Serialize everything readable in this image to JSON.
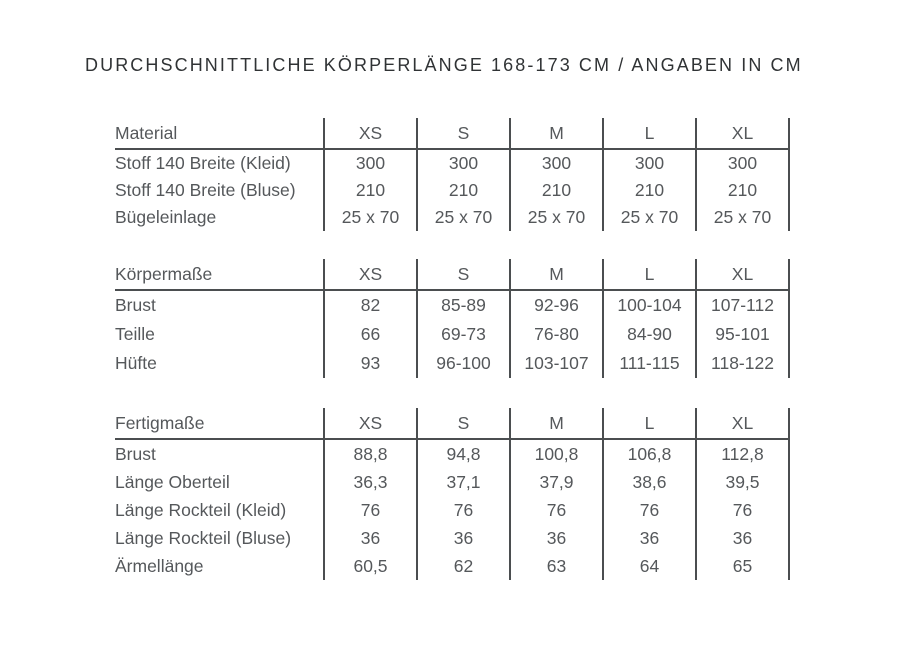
{
  "title": "DURCHSCHNITTLICHE KÖRPERLÄNGE 168-173 CM / ANGABEN IN CM",
  "colors": {
    "background": "#ffffff",
    "title_text": "#303335",
    "body_text": "#55585b",
    "line": "#4b4e50"
  },
  "sizes": [
    "XS",
    "S",
    "M",
    "L",
    "XL"
  ],
  "tables": [
    {
      "name": "Material",
      "header": {
        "label": "Material",
        "cols": [
          "XS",
          "S",
          "M",
          "L",
          "XL"
        ]
      },
      "rows": [
        {
          "label": "Stoff 140 Breite (Kleid)",
          "values": [
            "300",
            "300",
            "300",
            "300",
            "300"
          ]
        },
        {
          "label": "Stoff 140 Breite (Bluse)",
          "values": [
            "210",
            "210",
            "210",
            "210",
            "210"
          ]
        },
        {
          "label": "Bügeleinlage",
          "values": [
            "25 x 70",
            "25 x 70",
            "25 x 70",
            "25 x 70",
            "25 x 70"
          ]
        }
      ]
    },
    {
      "name": "Körpermaße",
      "header": {
        "label": "Körpermaße",
        "cols": [
          "XS",
          "S",
          "M",
          "L",
          "XL"
        ]
      },
      "rows": [
        {
          "label": "Brust",
          "values": [
            "82",
            "85-89",
            "92-96",
            "100-104",
            "107-112"
          ]
        },
        {
          "label": "Teille",
          "values": [
            "66",
            "69-73",
            "76-80",
            "84-90",
            "95-101"
          ]
        },
        {
          "label": "Hüfte",
          "values": [
            "93",
            "96-100",
            "103-107",
            "111-115",
            "118-122"
          ]
        }
      ]
    },
    {
      "name": "Fertigmaße",
      "header": {
        "label": "Fertigmaße",
        "cols": [
          "XS",
          "S",
          "M",
          "L",
          "XL"
        ]
      },
      "rows": [
        {
          "label": "Brust",
          "values": [
            "88,8",
            "94,8",
            "100,8",
            "106,8",
            "112,8"
          ]
        },
        {
          "label": "Länge Oberteil",
          "values": [
            "36,3",
            "37,1",
            "37,9",
            "38,6",
            "39,5"
          ]
        },
        {
          "label": "Länge Rockteil (Kleid)",
          "values": [
            "76",
            "76",
            "76",
            "76",
            "76"
          ]
        },
        {
          "label": "Länge Rockteil (Bluse)",
          "values": [
            "36",
            "36",
            "36",
            "36",
            "36"
          ]
        },
        {
          "label": "Ärmellänge",
          "values": [
            "60,5",
            "62",
            "63",
            "64",
            "65"
          ]
        }
      ]
    }
  ]
}
